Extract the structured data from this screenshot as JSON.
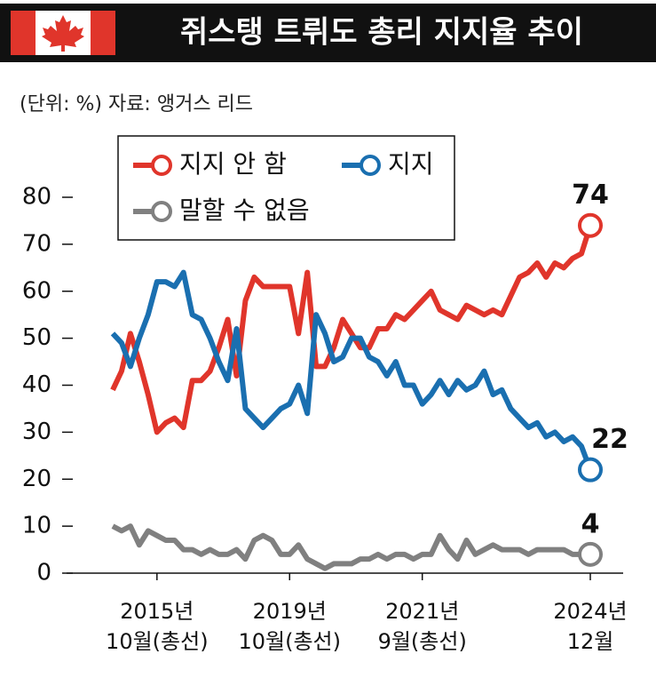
{
  "chart_data": {
    "type": "line",
    "title": "쥐스탱 트뤼도 총리 지지율 추이",
    "subtitle": "(단위: %)  자료: 앵거스 리드",
    "categories": [
      null,
      null,
      null,
      null,
      null,
      "2015년\n10월(총선)",
      null,
      null,
      null,
      null,
      null,
      null,
      null,
      null,
      null,
      null,
      null,
      null,
      null,
      null,
      "2019년\n10월(총선)",
      null,
      null,
      null,
      null,
      null,
      null,
      null,
      null,
      null,
      null,
      null,
      null,
      null,
      null,
      "2021년\n9월(총선)",
      null,
      null,
      null,
      null,
      null,
      null,
      null,
      null,
      null,
      null,
      null,
      null,
      null,
      null,
      null,
      null,
      null,
      null,
      "2024년\n12월"
    ],
    "series": [
      {
        "name": "지지 안 함",
        "color": "#e0352b",
        "values": [
          39,
          43,
          51,
          45,
          38,
          30,
          32,
          33,
          31,
          41,
          41,
          43,
          48,
          54,
          42,
          58,
          63,
          61,
          61,
          61,
          61,
          51,
          64,
          44,
          44,
          48,
          54,
          51,
          48,
          48,
          52,
          52,
          55,
          54,
          56,
          58,
          60,
          56,
          55,
          54,
          57,
          56,
          55,
          56,
          55,
          59,
          63,
          64,
          66,
          63,
          66,
          65,
          67,
          68,
          74
        ]
      },
      {
        "name": "지지",
        "color": "#1a6fb0",
        "values": [
          51,
          49,
          44,
          50,
          55,
          62,
          62,
          61,
          64,
          55,
          54,
          50,
          45,
          41,
          52,
          35,
          33,
          31,
          33,
          35,
          36,
          40,
          34,
          55,
          51,
          45,
          46,
          50,
          50,
          46,
          45,
          42,
          45,
          40,
          40,
          36,
          38,
          41,
          38,
          41,
          39,
          40,
          43,
          38,
          39,
          35,
          33,
          31,
          32,
          29,
          30,
          28,
          29,
          27,
          22
        ]
      },
      {
        "name": "말할 수 없음",
        "color": "#808080",
        "values": [
          10,
          9,
          10,
          6,
          9,
          8,
          7,
          7,
          5,
          5,
          4,
          5,
          4,
          4,
          5,
          3,
          7,
          8,
          7,
          4,
          4,
          6,
          3,
          2,
          1,
          2,
          2,
          2,
          3,
          3,
          4,
          3,
          4,
          4,
          3,
          4,
          4,
          8,
          5,
          3,
          7,
          4,
          5,
          6,
          5,
          5,
          5,
          4,
          5,
          5,
          5,
          5,
          4,
          4,
          4
        ]
      }
    ],
    "ylim": [
      0,
      80
    ],
    "yticks": [
      0,
      10,
      20,
      30,
      40,
      50,
      60,
      70,
      80
    ]
  }
}
